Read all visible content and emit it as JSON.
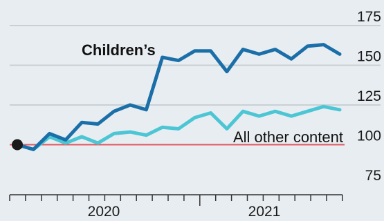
{
  "chart_data": {
    "type": "line",
    "x_start": "2019-11",
    "x_labels": [
      "2020",
      "2021"
    ],
    "y_ticks": [
      75,
      100,
      125,
      150,
      175
    ],
    "ylim": [
      75,
      175
    ],
    "baseline": 100,
    "series": [
      {
        "name": "Children’s",
        "color": "#1a6fa8",
        "values": [
          100,
          97,
          107,
          103,
          114,
          113,
          121,
          125,
          122,
          155,
          153,
          159,
          159,
          146,
          160,
          157,
          160,
          154,
          162,
          163,
          157
        ]
      },
      {
        "name": "All other content",
        "color": "#4cc6d4",
        "values": [
          100,
          97,
          105,
          101,
          105,
          101,
          107,
          108,
          106,
          111,
          110,
          117,
          120,
          110,
          121,
          118,
          121,
          118,
          121,
          124,
          122
        ]
      }
    ],
    "start_marker": {
      "value": 100,
      "color": "#1a1a1a"
    },
    "grid": true,
    "baseline_color": "#e0585f",
    "grid_color": "#c9d0d5"
  }
}
